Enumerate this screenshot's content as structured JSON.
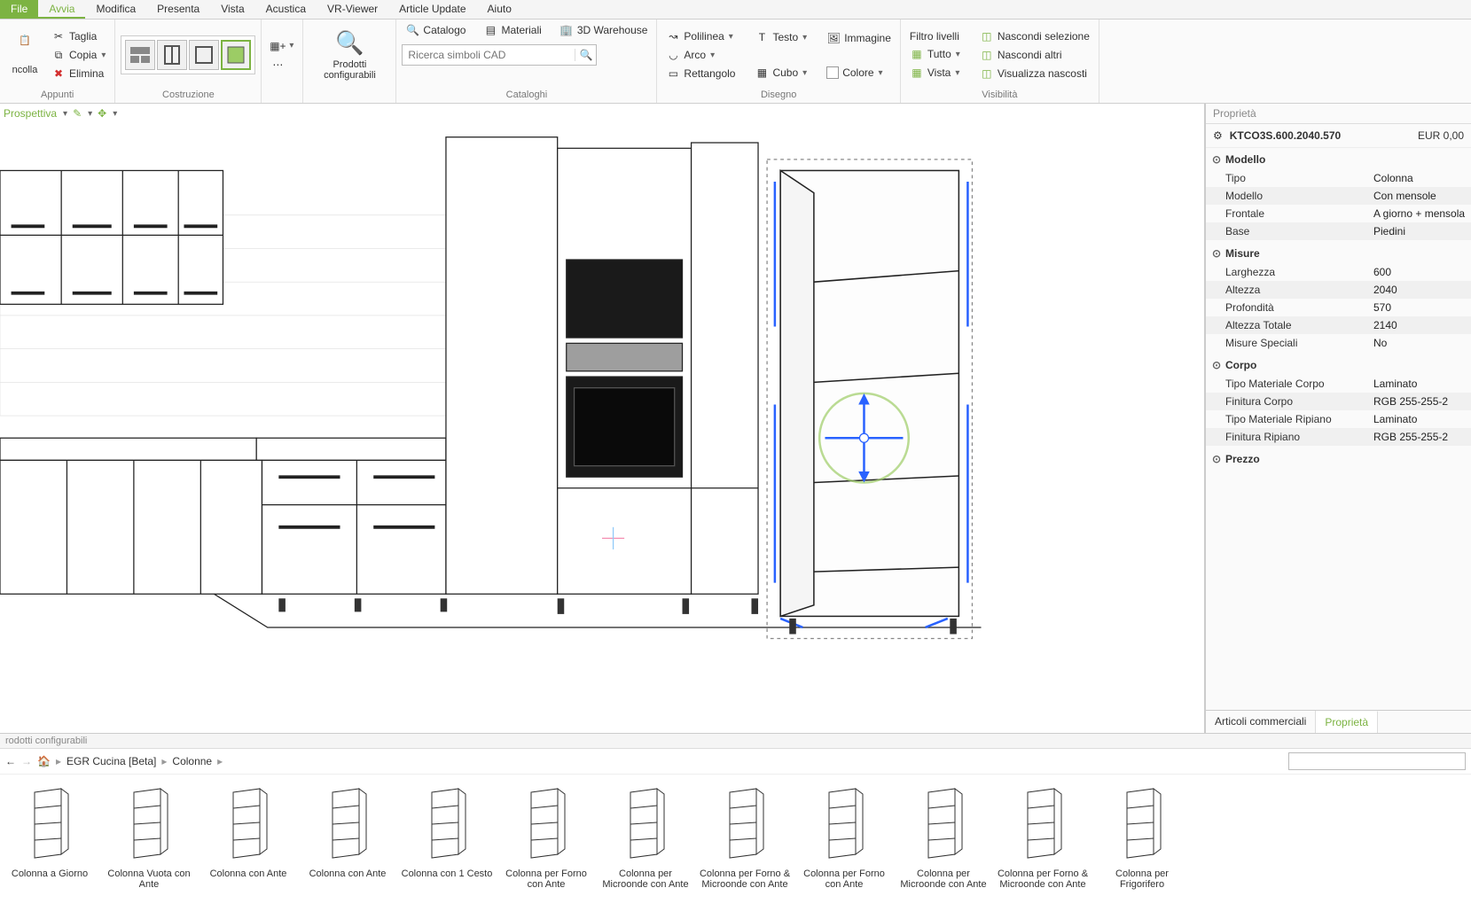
{
  "colors": {
    "accent": "#7cb342",
    "text": "#333333",
    "muted": "#888888",
    "border": "#cccccc",
    "bg": "#ffffff"
  },
  "menu": {
    "items": [
      "File",
      "Avvia",
      "Modifica",
      "Presenta",
      "Vista",
      "Acustica",
      "VR-Viewer",
      "Article Update",
      "Aiuto"
    ],
    "active": "Avvia"
  },
  "ribbon": {
    "clipboard": {
      "label": "Appunti",
      "paste": "ncolla",
      "cut": "Taglia",
      "copy": "Copia",
      "delete": "Elimina"
    },
    "construction": {
      "label": "Costruzione"
    },
    "products": {
      "label": "Prodotti configurabili"
    },
    "catalogs": {
      "label": "Cataloghi",
      "catalog": "Catalogo",
      "materials": "Materiali",
      "warehouse": "3D Warehouse",
      "search_placeholder": "Ricerca simboli CAD"
    },
    "drawing": {
      "label": "Disegno",
      "polyline": "Polilinea",
      "arc": "Arco",
      "rectangle": "Rettangolo",
      "text": "Testo",
      "image": "Immagine",
      "cube": "Cubo",
      "color": "Colore"
    },
    "visibility": {
      "label": "Visibilità",
      "filter": "Filtro livelli",
      "all": "Tutto",
      "vista": "Vista",
      "hide_sel": "Nascondi selezione",
      "hide_others": "Nascondi altri",
      "show_hidden": "Visualizza nascosti"
    }
  },
  "viewport": {
    "mode": "Prospettiva"
  },
  "properties": {
    "title": "Proprietà",
    "item_code": "KTCO3S.600.2040.570",
    "price": "EUR 0,00",
    "sections": [
      {
        "name": "Modello",
        "rows": [
          {
            "label": "Tipo",
            "value": "Colonna"
          },
          {
            "label": "Modello",
            "value": "Con mensole"
          },
          {
            "label": "Frontale",
            "value": "A giorno + mensola"
          },
          {
            "label": "Base",
            "value": "Piedini"
          }
        ]
      },
      {
        "name": "Misure",
        "rows": [
          {
            "label": "Larghezza",
            "value": "600"
          },
          {
            "label": "Altezza",
            "value": "2040"
          },
          {
            "label": "Profondità",
            "value": "570"
          },
          {
            "label": "Altezza Totale",
            "value": "2140"
          },
          {
            "label": "Misure Speciali",
            "value": "No"
          }
        ]
      },
      {
        "name": "Corpo",
        "rows": [
          {
            "label": "Tipo Materiale Corpo",
            "value": "Laminato"
          },
          {
            "label": "Finitura Corpo",
            "value": "RGB 255-255-2"
          },
          {
            "label": "Tipo Materiale Ripiano",
            "value": "Laminato"
          },
          {
            "label": "Finitura Ripiano",
            "value": "RGB 255-255-2"
          }
        ]
      },
      {
        "name": "Prezzo",
        "rows": []
      }
    ],
    "tabs": {
      "commercial": "Articoli commerciali",
      "properties": "Proprietà"
    }
  },
  "browser": {
    "title": "rodotti configurabili",
    "crumbs": [
      "EGR Cucina [Beta]",
      "Colonne"
    ],
    "items": [
      "Colonna a Giorno",
      "Colonna Vuota con Ante",
      "Colonna con Ante",
      "Colonna con Ante",
      "Colonna con 1 Cesto",
      "Colonna per Forno con Ante",
      "Colonna per Microonde con Ante",
      "Colonna per Forno & Microonde con Ante",
      "Colonna per Forno con Ante",
      "Colonna per Microonde con Ante",
      "Colonna per Forno & Microonde con Ante",
      "Colonna per Frigorifero"
    ]
  }
}
